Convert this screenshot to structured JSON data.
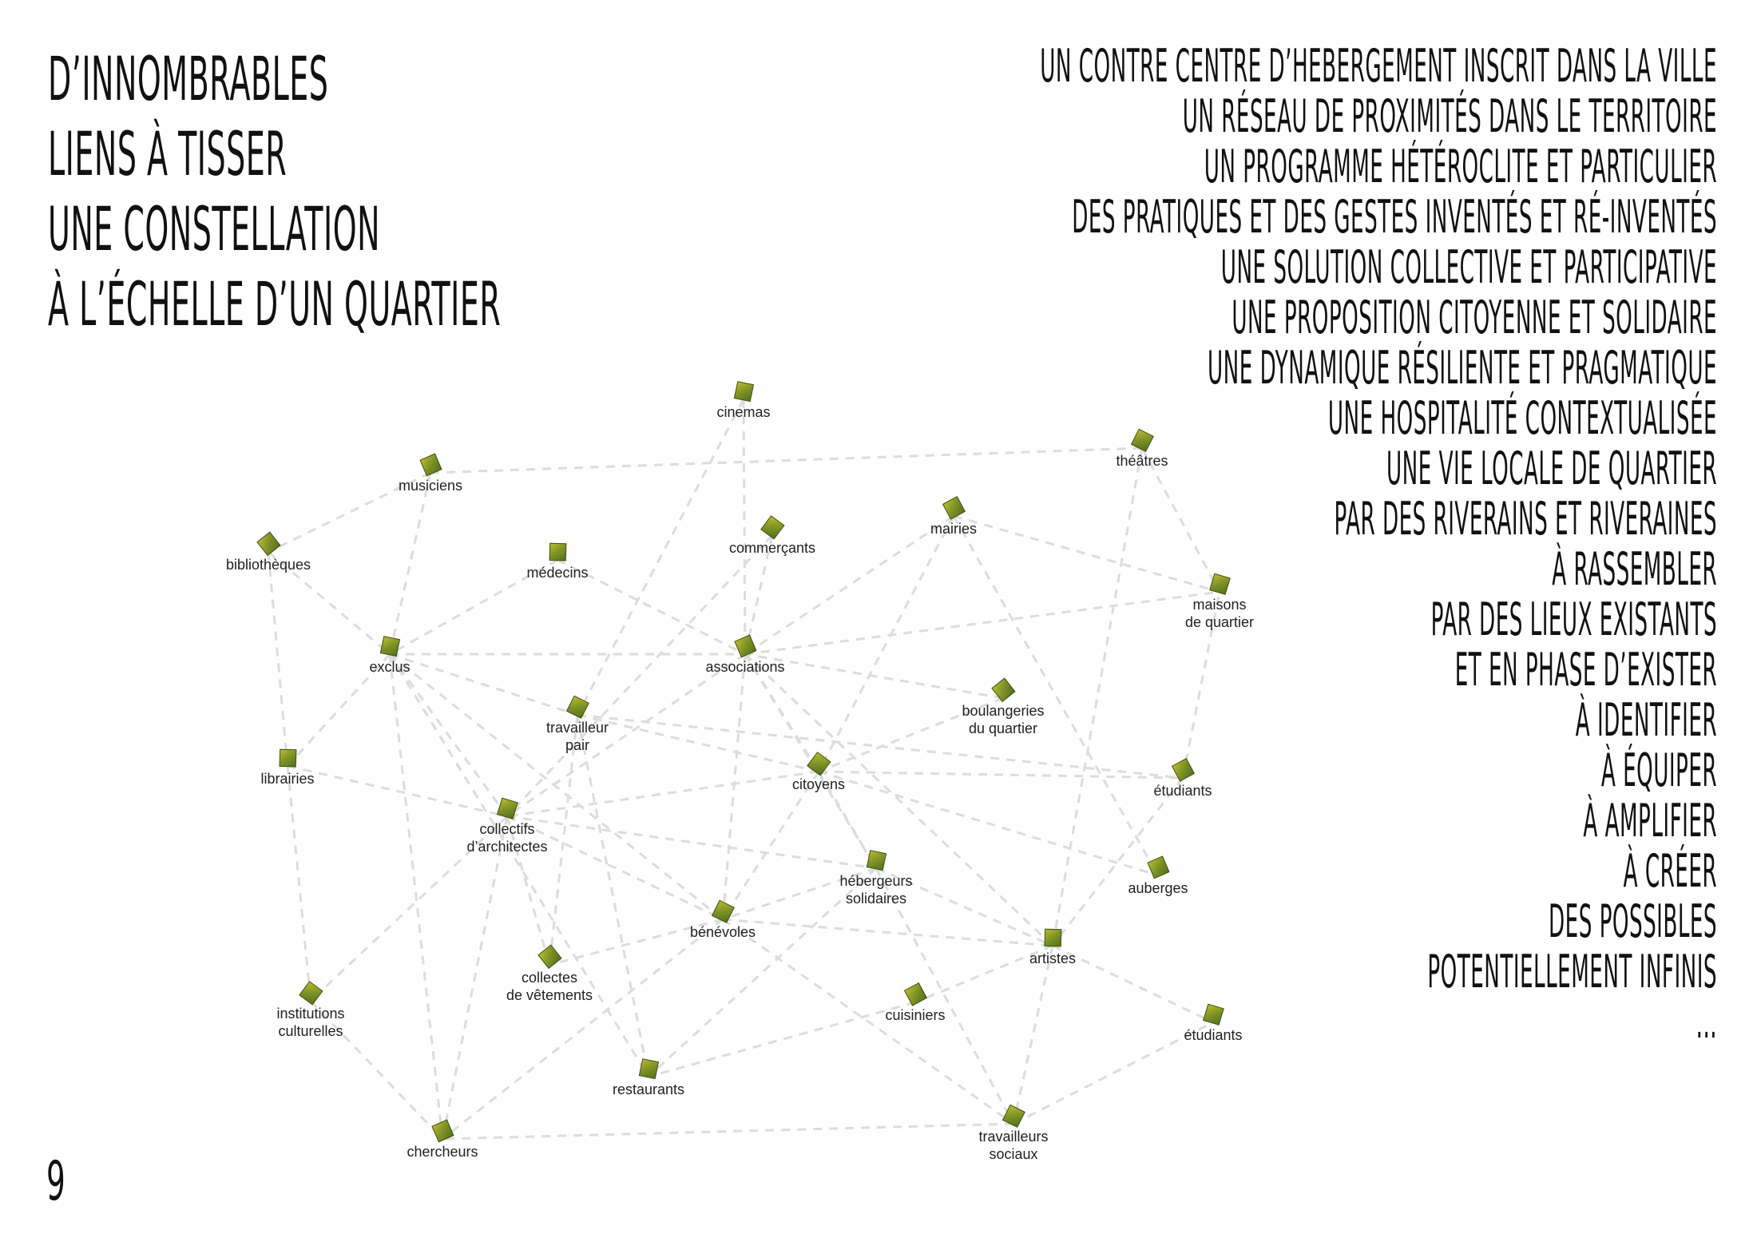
{
  "title": {
    "lines": [
      "D’innombrables",
      "liens à tisser",
      "une constellation",
      "à l’échelle d’un quartier"
    ]
  },
  "tagline": {
    "lines": [
      "Un contre centre d’hebergement inscrit dans la ville",
      "Un réseau de proximités dans le territoire",
      "Un programme hétéroclite et particulier",
      "Des pratiques et des gestes inventés et ré-inventés",
      "Une solution collective et participative",
      "Une proposition citoyenne et solidaire",
      "Une dynamique résiliente et pragmatique",
      "Une hospitalité contextualisée",
      "Une vie locale de quartier",
      "par des riverains et riveraines",
      "à rassembler",
      "par des lieux existants",
      "et en phase d’exister",
      "à identifier",
      "à équiper",
      "à amplifier",
      "à créer",
      "des possibles",
      "potentiellement infinis",
      "..."
    ]
  },
  "page_number": "9",
  "colors": {
    "node_dark": "#5e7a1e",
    "node_light": "#c8c230",
    "edge": "#dcdcdc",
    "text": "#111111"
  },
  "network": {
    "nodes": [
      {
        "id": "cinemas",
        "label": [
          "cinemas"
        ]
      },
      {
        "id": "musiciens",
        "label": [
          "musiciens"
        ]
      },
      {
        "id": "theatres",
        "label": [
          "théâtres"
        ]
      },
      {
        "id": "bibliotheques",
        "label": [
          "bibliothèques"
        ]
      },
      {
        "id": "medecins",
        "label": [
          "médecins"
        ]
      },
      {
        "id": "commercants",
        "label": [
          "commerçants"
        ]
      },
      {
        "id": "mairies",
        "label": [
          "mairies"
        ]
      },
      {
        "id": "maisons",
        "label": [
          "maisons",
          "de quartier"
        ]
      },
      {
        "id": "exclus",
        "label": [
          "exclus"
        ]
      },
      {
        "id": "associations",
        "label": [
          "associations"
        ]
      },
      {
        "id": "travailleur_pair",
        "label": [
          "travailleur",
          "pair"
        ]
      },
      {
        "id": "boulangeries",
        "label": [
          "boulangeries",
          "du quartier"
        ]
      },
      {
        "id": "librairies",
        "label": [
          "librairies"
        ]
      },
      {
        "id": "citoyens",
        "label": [
          "citoyens"
        ]
      },
      {
        "id": "etudiants",
        "label": [
          "étudiants"
        ]
      },
      {
        "id": "collectifs",
        "label": [
          "collectifs",
          "d’architectes"
        ]
      },
      {
        "id": "hebergeurs",
        "label": [
          "hébergeurs",
          "solidaires"
        ]
      },
      {
        "id": "auberges",
        "label": [
          "auberges"
        ]
      },
      {
        "id": "benevoles",
        "label": [
          "bénévoles"
        ]
      },
      {
        "id": "collectes",
        "label": [
          "collectes",
          "de vêtements"
        ]
      },
      {
        "id": "artistes",
        "label": [
          "artistes"
        ]
      },
      {
        "id": "institutions",
        "label": [
          "institutions",
          "culturelles"
        ]
      },
      {
        "id": "cuisiniers",
        "label": [
          "cuisiniers"
        ]
      },
      {
        "id": "etudiants2",
        "label": [
          "étudiants"
        ]
      },
      {
        "id": "restaurants",
        "label": [
          "restaurants"
        ]
      },
      {
        "id": "chercheurs",
        "label": [
          "chercheurs"
        ]
      },
      {
        "id": "travailleurs_sociaux",
        "label": [
          "travailleurs",
          "sociaux"
        ]
      }
    ],
    "links": [
      [
        "musiciens",
        "bibliotheques"
      ],
      [
        "musiciens",
        "theatres"
      ],
      [
        "musiciens",
        "exclus"
      ],
      [
        "cinemas",
        "associations"
      ],
      [
        "cinemas",
        "travailleur_pair"
      ],
      [
        "bibliotheques",
        "librairies"
      ],
      [
        "bibliotheques",
        "exclus"
      ],
      [
        "medecins",
        "exclus"
      ],
      [
        "medecins",
        "associations"
      ],
      [
        "commercants",
        "associations"
      ],
      [
        "commercants",
        "collectifs"
      ],
      [
        "mairies",
        "associations"
      ],
      [
        "mairies",
        "citoyens"
      ],
      [
        "mairies",
        "maisons"
      ],
      [
        "mairies",
        "auberges"
      ],
      [
        "theatres",
        "maisons"
      ],
      [
        "theatres",
        "artistes"
      ],
      [
        "exclus",
        "associations"
      ],
      [
        "exclus",
        "librairies"
      ],
      [
        "exclus",
        "travailleur_pair"
      ],
      [
        "exclus",
        "collectifs"
      ],
      [
        "exclus",
        "benevoles"
      ],
      [
        "exclus",
        "chercheurs"
      ],
      [
        "exclus",
        "restaurants"
      ],
      [
        "associations",
        "maisons"
      ],
      [
        "associations",
        "citoyens"
      ],
      [
        "associations",
        "benevoles"
      ],
      [
        "associations",
        "collectifs"
      ],
      [
        "associations",
        "hebergeurs"
      ],
      [
        "associations",
        "artistes"
      ],
      [
        "travailleur_pair",
        "citoyens"
      ],
      [
        "travailleur_pair",
        "etudiants"
      ],
      [
        "travailleur_pair",
        "collectes"
      ],
      [
        "travailleur_pair",
        "restaurants"
      ],
      [
        "boulangeries",
        "citoyens"
      ],
      [
        "boulangeries",
        "associations"
      ],
      [
        "librairies",
        "collectifs"
      ],
      [
        "librairies",
        "institutions"
      ],
      [
        "citoyens",
        "hebergeurs"
      ],
      [
        "citoyens",
        "benevoles"
      ],
      [
        "citoyens",
        "collectifs"
      ],
      [
        "citoyens",
        "etudiants"
      ],
      [
        "citoyens",
        "auberges"
      ],
      [
        "etudiants",
        "maisons"
      ],
      [
        "etudiants",
        "artistes"
      ],
      [
        "collectifs",
        "hebergeurs"
      ],
      [
        "collectifs",
        "institutions"
      ],
      [
        "collectifs",
        "chercheurs"
      ],
      [
        "collectifs",
        "benevoles"
      ],
      [
        "collectifs",
        "collectes"
      ],
      [
        "hebergeurs",
        "benevoles"
      ],
      [
        "hebergeurs",
        "travailleurs_sociaux"
      ],
      [
        "hebergeurs",
        "artistes"
      ],
      [
        "hebergeurs",
        "restaurants"
      ],
      [
        "benevoles",
        "collectes"
      ],
      [
        "benevoles",
        "artistes"
      ],
      [
        "benevoles",
        "travailleurs_sociaux"
      ],
      [
        "benevoles",
        "chercheurs"
      ],
      [
        "artistes",
        "cuisiniers"
      ],
      [
        "artistes",
        "etudiants2"
      ],
      [
        "artistes",
        "travailleurs_sociaux"
      ],
      [
        "cuisiniers",
        "restaurants"
      ],
      [
        "travailleurs_sociaux",
        "etudiants2"
      ],
      [
        "travailleurs_sociaux",
        "chercheurs"
      ],
      [
        "institutions",
        "chercheurs"
      ]
    ]
  }
}
